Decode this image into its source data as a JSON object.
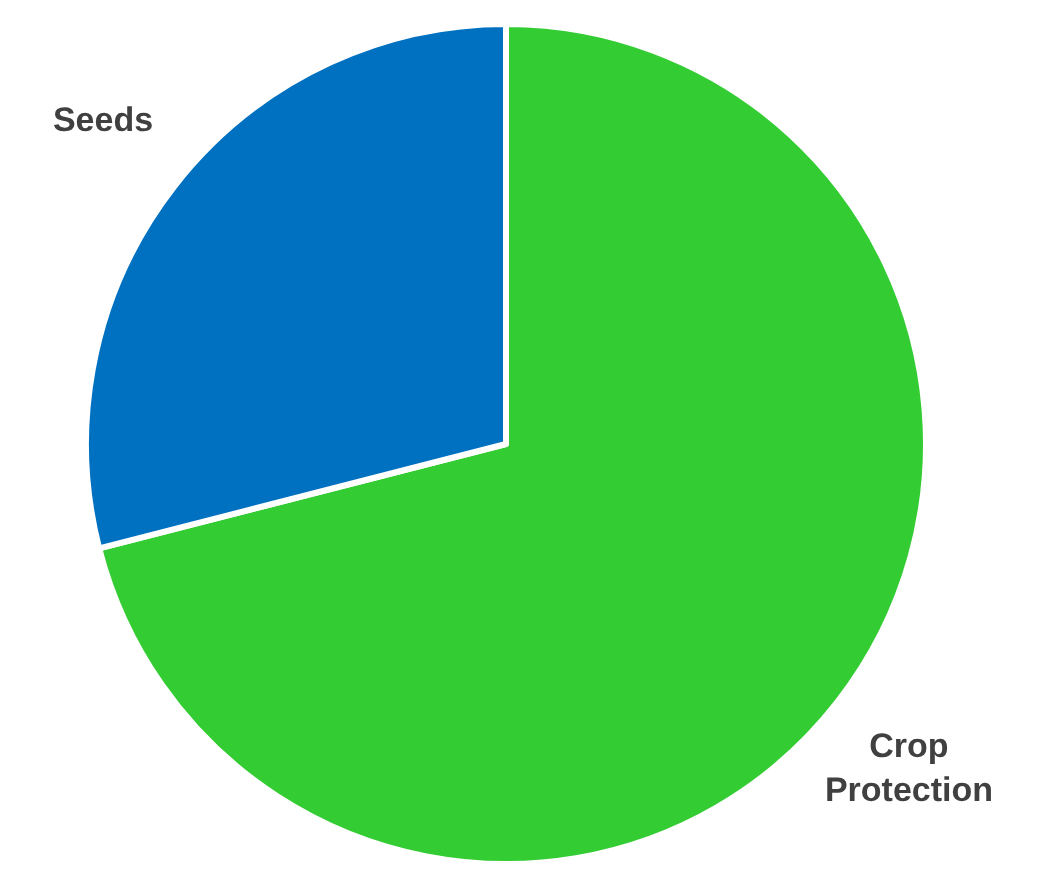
{
  "chart_data": {
    "type": "pie",
    "categories": [
      "Crop Protection",
      "Seeds"
    ],
    "values": [
      71,
      29
    ],
    "colors": [
      "#33cc33",
      "#0070c0"
    ]
  }
}
